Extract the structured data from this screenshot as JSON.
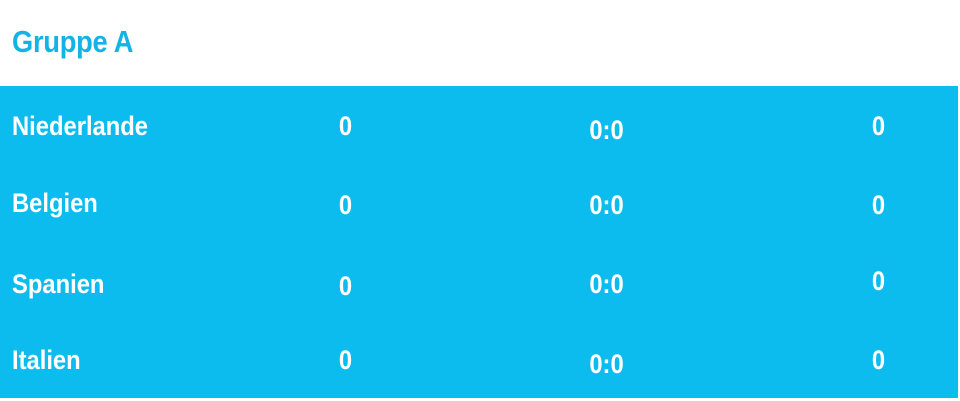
{
  "colors": {
    "title": "#13b3e6",
    "band": "#0dbcef",
    "text": "#ffffff"
  },
  "group": {
    "title": "Gruppe A",
    "rows": [
      {
        "team": "Niederlande",
        "v1": "0",
        "score": "0:0",
        "v2": "0"
      },
      {
        "team": "Belgien",
        "v1": "0",
        "score": "0:0",
        "v2": "0"
      },
      {
        "team": "Spanien",
        "v1": "0",
        "score": "0:0",
        "v2": "0"
      },
      {
        "team": "Italien",
        "v1": "0",
        "score": "0:0",
        "v2": "0"
      }
    ]
  }
}
